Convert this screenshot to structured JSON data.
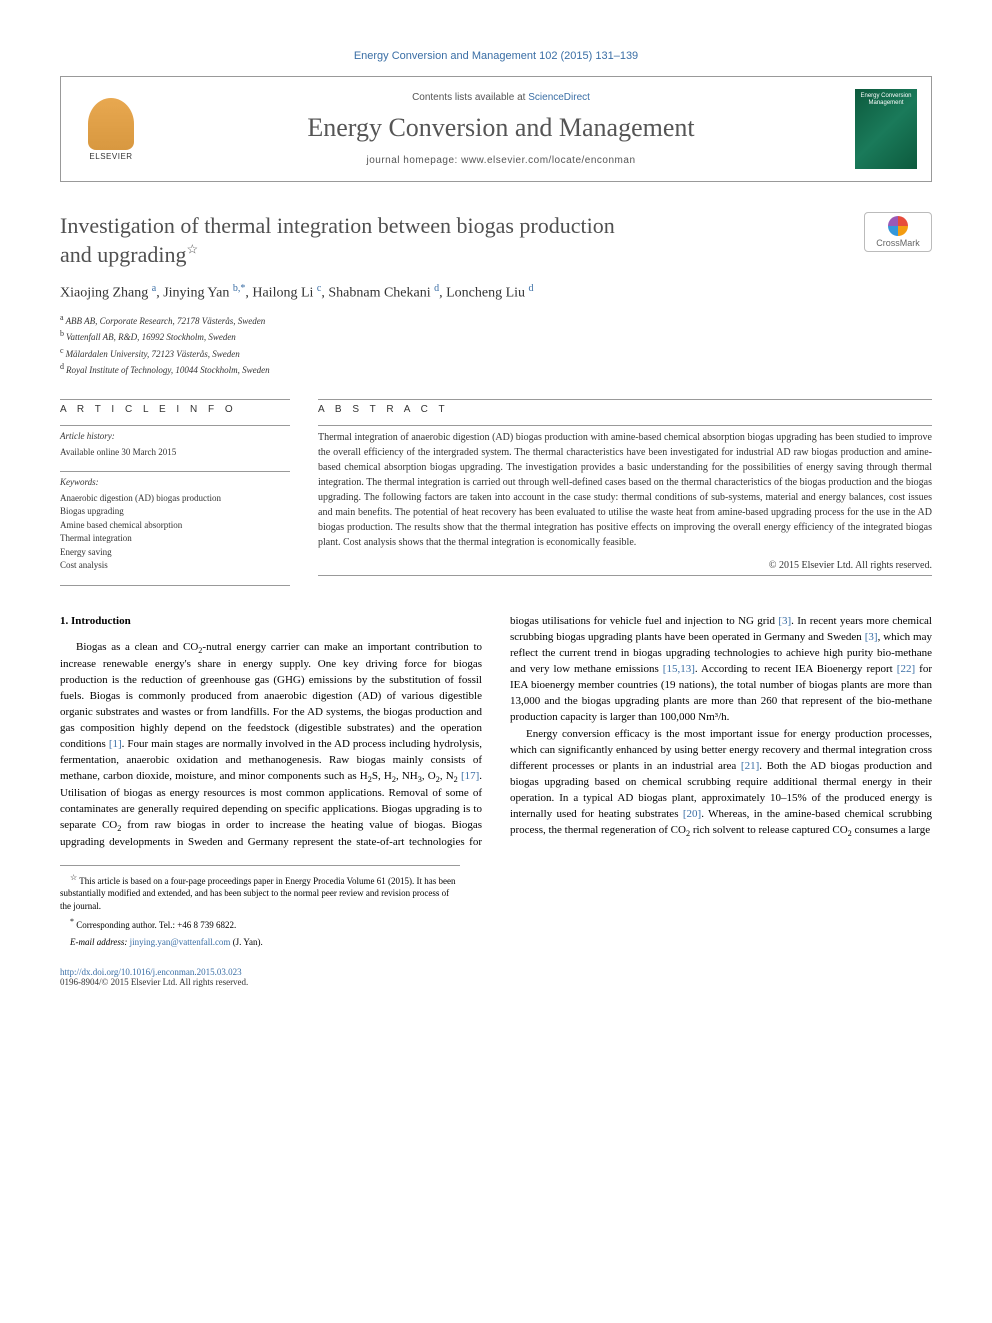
{
  "header": {
    "journal_ref": "Energy Conversion and Management 102 (2015) 131–139",
    "contents_prefix": "Contents lists available at ",
    "contents_link": "ScienceDirect",
    "journal_name": "Energy Conversion and Management",
    "homepage_label": "journal homepage: ",
    "homepage_url": "www.elsevier.com/locate/enconman",
    "publisher_logo_text": "ELSEVIER",
    "cover_text": "Energy Conversion Management"
  },
  "meta": {
    "crossmark_label": "CrossMark",
    "title_line1": "Investigation of thermal integration between biogas production",
    "title_line2": "and upgrading",
    "title_star": "☆",
    "authors_html": "Xiaojing Zhang|a|, Jinying Yan|b,*|, Hailong Li|c|, Shabnam Chekani|d|, Loncheng Liu|d",
    "affiliations": [
      {
        "sup": "a",
        "text": "ABB AB, Corporate Research, 72178 Västerås, Sweden"
      },
      {
        "sup": "b",
        "text": "Vattenfall AB, R&D, 16992 Stockholm, Sweden"
      },
      {
        "sup": "c",
        "text": "Mälardalen University, 72123 Västerås, Sweden"
      },
      {
        "sup": "d",
        "text": "Royal Institute of Technology, 10044 Stockholm, Sweden"
      }
    ]
  },
  "info": {
    "heading": "A R T I C L E   I N F O",
    "history_label": "Article history:",
    "history_text": "Available online 30 March 2015",
    "keywords_label": "Keywords:",
    "keywords": [
      "Anaerobic digestion (AD) biogas production",
      "Biogas upgrading",
      "Amine based chemical absorption",
      "Thermal integration",
      "Energy saving",
      "Cost analysis"
    ]
  },
  "abstract": {
    "heading": "A B S T R A C T",
    "text": "Thermal integration of anaerobic digestion (AD) biogas production with amine-based chemical absorption biogas upgrading has been studied to improve the overall efficiency of the intergraded system. The thermal characteristics have been investigated for industrial AD raw biogas production and amine-based chemical absorption biogas upgrading. The investigation provides a basic understanding for the possibilities of energy saving through thermal integration. The thermal integration is carried out through well-defined cases based on the thermal characteristics of the biogas production and the biogas upgrading. The following factors are taken into account in the case study: thermal conditions of sub-systems, material and energy balances, cost issues and main benefits. The potential of heat recovery has been evaluated to utilise the waste heat from amine-based upgrading process for the use in the AD biogas production. The results show that the thermal integration has positive effects on improving the overall energy efficiency of the integrated biogas plant. Cost analysis shows that the thermal integration is economically feasible.",
    "copyright": "© 2015 Elsevier Ltd. All rights reserved."
  },
  "body": {
    "section_heading": "1. Introduction",
    "p1_a": "Biogas as a clean and CO",
    "p1_b": "-nutral energy carrier can make an important contribution to increase renewable energy's share in energy supply. One key driving force for biogas production is the reduction of greenhouse gas (GHG) emissions by the substitution of fossil fuels. Biogas is commonly produced from anaerobic digestion (AD) of various digestible organic substrates and wastes or from landfills. For the AD systems, the biogas production and gas composition highly depend on the feedstock (digestible substrates) and the operation conditions ",
    "p1_ref1": "[1]",
    "p1_c": ". Four main stages are normally involved in the AD process including hydrolysis, fermentation, anaerobic oxidation and methanogenesis. Raw biogas mainly consists of methane, carbon dioxide, moisture, and minor components such as H",
    "p1_d": "S, H",
    "p1_e": ", NH",
    "p1_f": ", O",
    "p1_g": ", N",
    "p1_h": " ",
    "p1_ref2": "[17]",
    "p1_i": ". Utilisation of biogas as energy resources is most common applications. Removal of some of contaminates are generally required depending on specific applications. Biogas upgrading is to separate CO",
    "p1_j": " from raw biogas in order to increase the heating value of biogas. Biogas upgrading developments in Sweden and Germany represent the state-of-art technologies for biogas utilisations for vehicle fuel and injection to NG grid ",
    "p1_ref3": "[3]",
    "p1_k": ". In recent years more chemical scrubbing biogas upgrading plants have been operated in Germany and Sweden ",
    "p1_ref4": "[3]",
    "p1_l": ", which may reflect the current trend in biogas upgrading technologies to achieve high purity bio-methane and very low methane emissions ",
    "p1_ref5": "[15,13]",
    "p1_m": ". According to recent IEA Bioenergy report ",
    "p1_ref6": "[22]",
    "p1_n": " for IEA bioenergy member countries (19 nations), the total number of biogas plants are more than 13,000 and the biogas upgrading plants are more than 260 that represent of the bio-methane production capacity is larger than 100,000 Nm³/h.",
    "p2_a": "Energy conversion efficacy is the most important issue for energy production processes, which can significantly enhanced by using better energy recovery and thermal integration cross different processes or plants in an industrial area ",
    "p2_ref1": "[21]",
    "p2_b": ". Both the AD biogas production and biogas upgrading based on chemical scrubbing require additional thermal energy in their operation. In a typical AD biogas plant, approximately 10–15% of the produced energy is internally used for heating substrates ",
    "p2_ref2": "[20]",
    "p2_c": ". Whereas, in the amine-based chemical scrubbing process, the thermal regeneration of CO",
    "p2_d": " rich solvent to release captured CO",
    "p2_e": " consumes a large"
  },
  "footnotes": {
    "note1_star": "☆",
    "note1": " This article is based on a four-page proceedings paper in Energy Procedia Volume 61 (2015). It has been substantially modified and extended, and has been subject to the normal peer review and revision process of the journal.",
    "note2_star": "*",
    "note2": " Corresponding author. Tel.: +46 8 739 6822.",
    "email_label": "E-mail address: ",
    "email": "jinying.yan@vattenfall.com",
    "email_suffix": " (J. Yan)."
  },
  "footer": {
    "doi": "http://dx.doi.org/10.1016/j.enconman.2015.03.023",
    "issn_copyright": "0196-8904/© 2015 Elsevier Ltd. All rights reserved."
  }
}
